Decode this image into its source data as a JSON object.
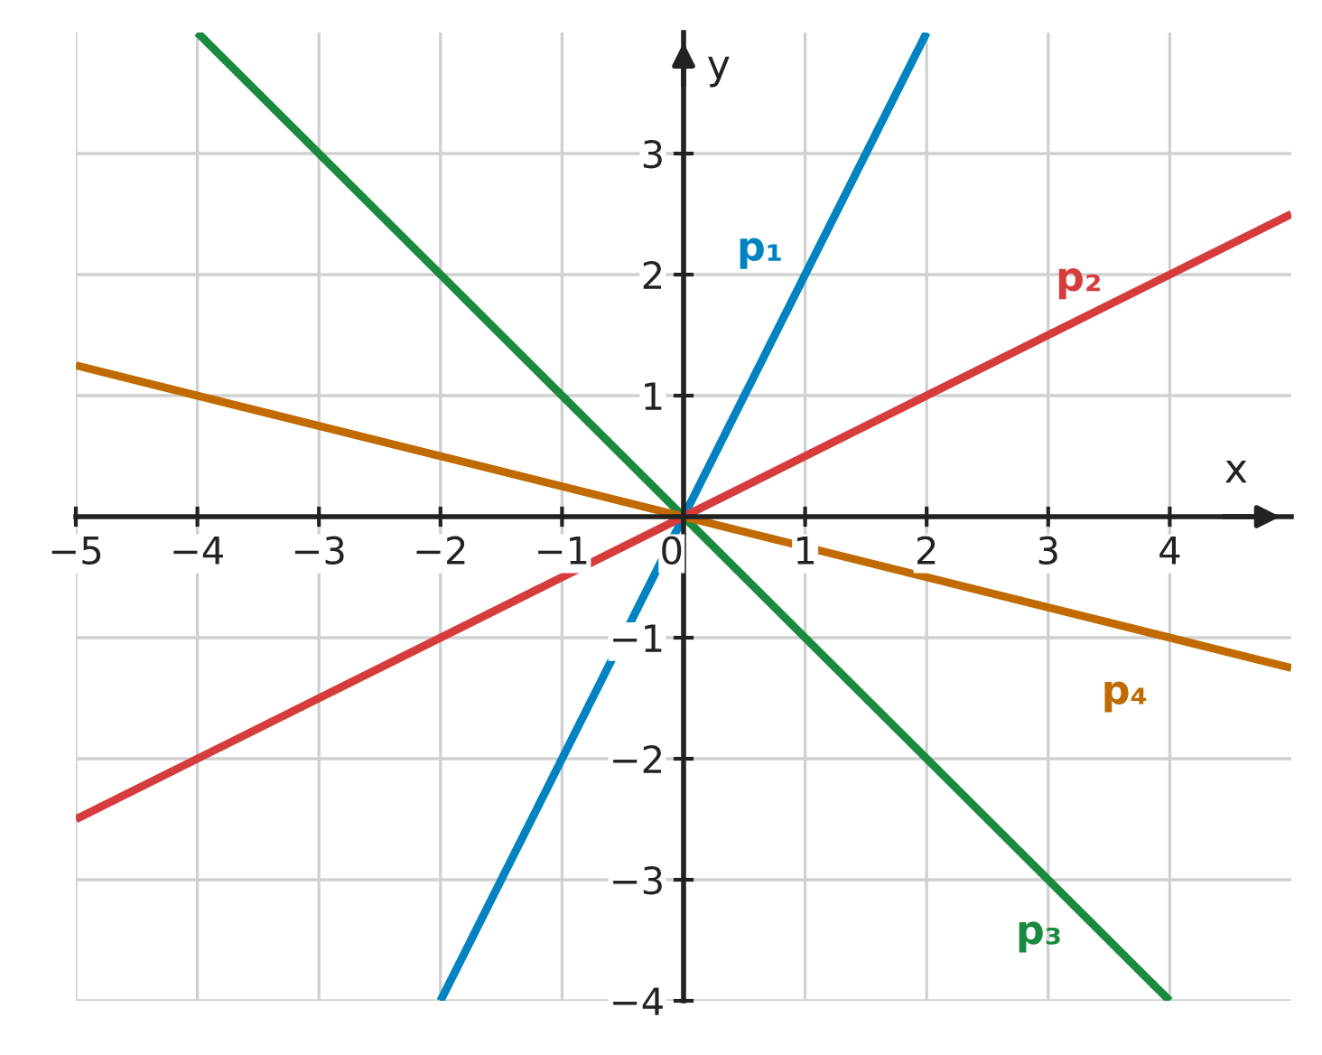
{
  "chart_data": {
    "type": "line",
    "xlabel": "x",
    "ylabel": "y",
    "xlim": [
      -5,
      5
    ],
    "ylim": [
      -4,
      4
    ],
    "xticks": [
      -5,
      -4,
      -3,
      -2,
      -1,
      0,
      1,
      2,
      3,
      4
    ],
    "yticks": [
      -4,
      -3,
      -2,
      -1,
      1,
      2,
      3
    ],
    "grid": true,
    "marker": "none",
    "line_style": "solid",
    "series": [
      {
        "name": "p₁",
        "color": "#0083c0",
        "x": [
          -2,
          2
        ],
        "values": [
          -4,
          4
        ]
      },
      {
        "name": "p₂",
        "color": "#d63c3c",
        "x": [
          -5,
          5
        ],
        "values": [
          -2.5,
          2.5
        ]
      },
      {
        "name": "p₃",
        "color": "#1a8a3f",
        "x": [
          -4,
          4
        ],
        "values": [
          4,
          -4
        ]
      },
      {
        "name": "p₄",
        "color": "#c06a00",
        "x": [
          -5,
          5
        ],
        "values": [
          1.25,
          -1.25
        ]
      }
    ]
  }
}
